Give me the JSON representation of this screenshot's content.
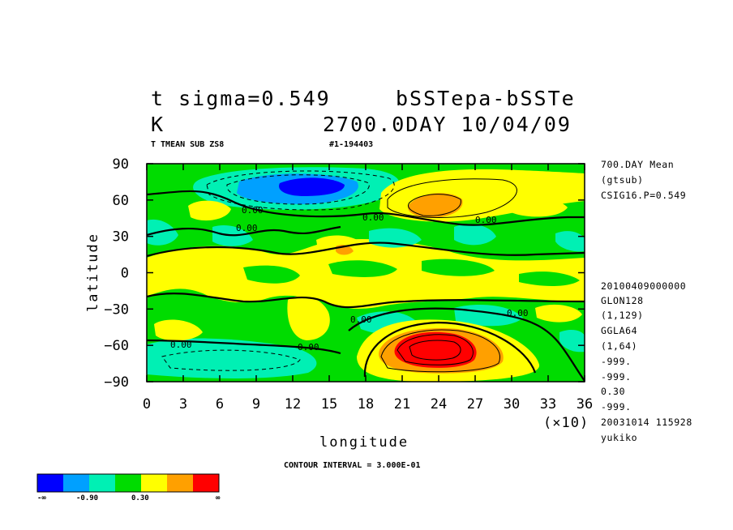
{
  "header": {
    "title_left_line1": "t sigma=0.549",
    "title_right_line1": "bSSTepa-bSSTe",
    "title_left_line2": "K",
    "title_right_line2": "2700.0DAY 10/04/09",
    "sub_left": "T TMEAN SUB ZS8",
    "sub_right": "#1-194403"
  },
  "right_info": {
    "top": [
      "700.DAY Mean",
      "(gtsub)",
      "CSIG16.P=0.549"
    ],
    "bottom": [
      "20100409000000",
      "GLON128",
      "(1,129)",
      "GGLA64",
      "(1,64)",
      "-999.",
      "-999.",
      "0.30",
      "-999.",
      "20031014 115928",
      "yukiko"
    ]
  },
  "footer": {
    "contour_interval": "CONTOUR INTERVAL = 3.000E-01"
  },
  "colorbar": {
    "colors": [
      "#0000ff",
      "#00a0ff",
      "#00f0b4",
      "#00dc00",
      "#ffff00",
      "#ffa000",
      "#ff0000"
    ],
    "labels": [
      "-∞",
      "-0.90",
      "0.30",
      "∞"
    ]
  },
  "chart_data": {
    "type": "heatmap",
    "title": "t sigma=0.549   bSSTepa-bSSTe",
    "units": "K",
    "xlabel": "longitude",
    "ylabel": "latitude",
    "x_multiplier": "(×10)",
    "xlim": [
      0,
      360
    ],
    "ylim": [
      -90,
      90
    ],
    "x_ticks": [
      "0",
      "3",
      "6",
      "9",
      "12",
      "15",
      "18",
      "21",
      "24",
      "27",
      "30",
      "33",
      "36"
    ],
    "y_ticks": [
      "90",
      "60",
      "30",
      "0",
      "−30",
      "−60",
      "−90"
    ],
    "contour_interval": 0.3,
    "contour_labels": [
      "0.00"
    ],
    "levels": [
      -0.9,
      -0.6,
      -0.3,
      0.0,
      0.3,
      0.6,
      0.9
    ],
    "features": [
      {
        "type": "minimum",
        "lon": 125,
        "lat": 72,
        "value": -1.8
      },
      {
        "type": "maximum",
        "lon": 240,
        "lat": -58,
        "value": 1.6
      },
      {
        "type": "maximum",
        "lon": 240,
        "lat": 55,
        "value": 0.9
      },
      {
        "type": "minimum",
        "lon": 100,
        "lat": -62,
        "value": -0.6
      }
    ]
  }
}
